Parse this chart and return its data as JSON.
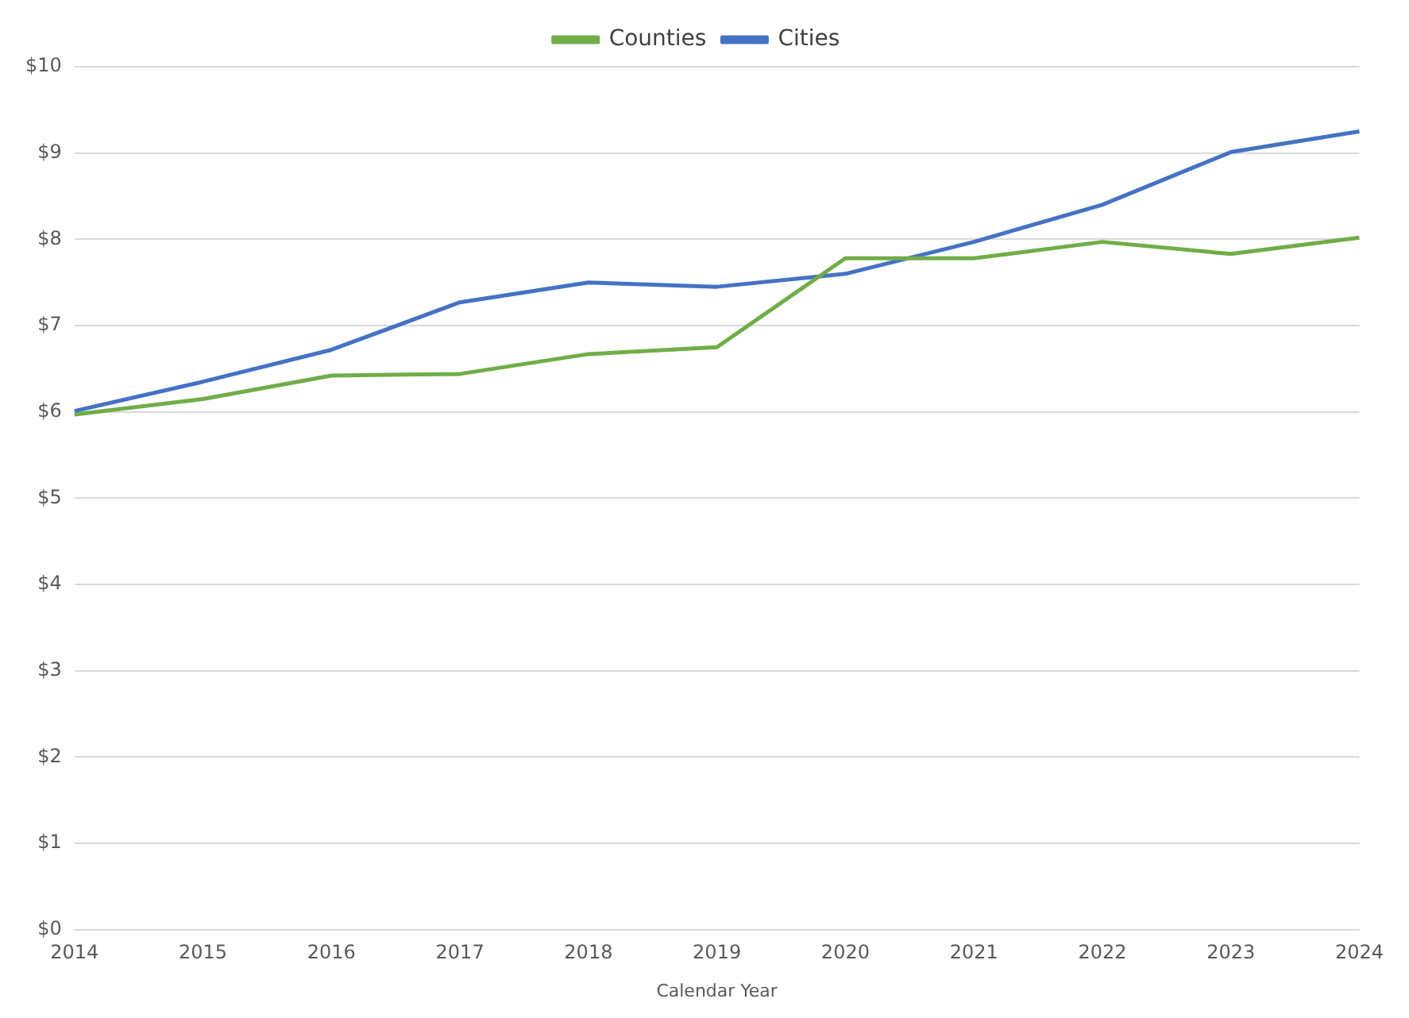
{
  "chart_data": {
    "type": "line",
    "xlabel": "Calendar Year",
    "categories": [
      "2014",
      "2015",
      "2016",
      "2017",
      "2018",
      "2019",
      "2020",
      "2021",
      "2022",
      "2023",
      "2024"
    ],
    "series": [
      {
        "name": "Counties",
        "color": "#70ad47",
        "values": [
          5.97,
          6.15,
          6.42,
          6.44,
          6.67,
          6.75,
          7.78,
          7.78,
          7.97,
          7.83,
          8.02
        ]
      },
      {
        "name": "Cities",
        "color": "#4472c4",
        "values": [
          6.01,
          6.35,
          6.72,
          7.27,
          7.5,
          7.45,
          7.6,
          7.97,
          8.4,
          9.01,
          9.25
        ]
      }
    ],
    "ylim": [
      0,
      10
    ],
    "yticks": [
      {
        "value": 0,
        "label": "$0"
      },
      {
        "value": 1,
        "label": "$1"
      },
      {
        "value": 2,
        "label": "$2"
      },
      {
        "value": 3,
        "label": "$3"
      },
      {
        "value": 4,
        "label": "$4"
      },
      {
        "value": 5,
        "label": "$5"
      },
      {
        "value": 6,
        "label": "$6"
      },
      {
        "value": 7,
        "label": "$7"
      },
      {
        "value": 8,
        "label": "$8"
      },
      {
        "value": 9,
        "label": "$9"
      },
      {
        "value": 10,
        "label": "$10"
      }
    ],
    "grid": "y",
    "legend": "top",
    "marker": "none",
    "line_style": "solid"
  }
}
